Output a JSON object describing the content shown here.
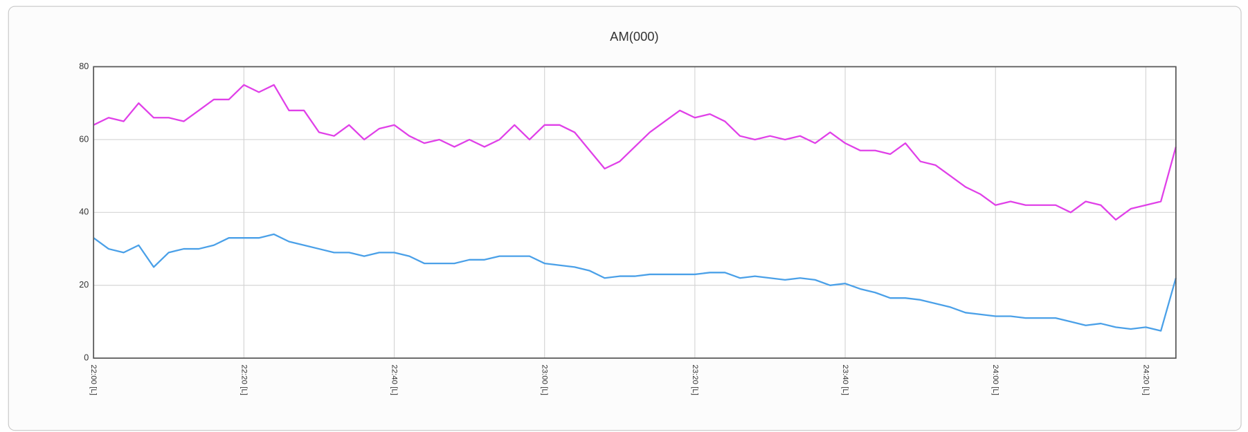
{
  "chart_data": {
    "type": "line",
    "title": "AM(000)",
    "categories": [
      "22:00 [L]",
      null,
      null,
      null,
      null,
      null,
      null,
      null,
      null,
      null,
      "22:20 [L]",
      null,
      null,
      null,
      null,
      null,
      null,
      null,
      null,
      null,
      "22:40 [L]",
      null,
      null,
      null,
      null,
      null,
      null,
      null,
      null,
      null,
      "23:00 [L]",
      null,
      null,
      null,
      null,
      null,
      null,
      null,
      null,
      null,
      "23:20 [L]",
      null,
      null,
      null,
      null,
      null,
      null,
      null,
      null,
      null,
      "23:40 [L]",
      null,
      null,
      null,
      null,
      null,
      null,
      null,
      null,
      null,
      "24:00 [L]",
      null,
      null,
      null,
      null,
      null,
      null,
      null,
      null,
      null,
      "24:20 [L]",
      null,
      null
    ],
    "series": [
      {
        "color": "#e040e8",
        "values": [
          64,
          66,
          65,
          70,
          66,
          66,
          65,
          68,
          71,
          71,
          75,
          73,
          75,
          68,
          68,
          62,
          61,
          64,
          60,
          63,
          64,
          61,
          59,
          60,
          58,
          60,
          58,
          60,
          64,
          60,
          64,
          64,
          62,
          57,
          52,
          54,
          58,
          62,
          65,
          68,
          66,
          67,
          65,
          61,
          60,
          61,
          60,
          61,
          59,
          62,
          59,
          57,
          57,
          56,
          59,
          54,
          53,
          50,
          47,
          45,
          42,
          43,
          42,
          42,
          42,
          40,
          43,
          42,
          38,
          41,
          42,
          43,
          58
        ]
      },
      {
        "color": "#4aa0e8",
        "values": [
          33,
          30,
          29,
          31,
          25,
          29,
          30,
          30,
          31,
          33,
          33,
          33,
          34,
          32,
          31,
          30,
          29,
          29,
          28,
          29,
          29,
          28,
          26,
          26,
          26,
          27,
          27,
          28,
          28,
          28,
          26,
          25.5,
          25,
          24,
          22,
          22.5,
          22.5,
          23,
          23,
          23,
          23,
          23.5,
          23.5,
          22,
          22.5,
          22,
          21.5,
          22,
          21.5,
          20,
          20.5,
          19,
          18,
          16.5,
          16.5,
          16,
          15,
          14,
          12.5,
          12,
          11.5,
          11.5,
          11,
          11,
          11,
          10,
          9,
          9.5,
          8.5,
          8,
          8.5,
          7.5,
          22
        ]
      }
    ],
    "ylim": [
      0,
      80
    ],
    "yticks": [
      0,
      20,
      40,
      60,
      80
    ],
    "grid": true
  }
}
